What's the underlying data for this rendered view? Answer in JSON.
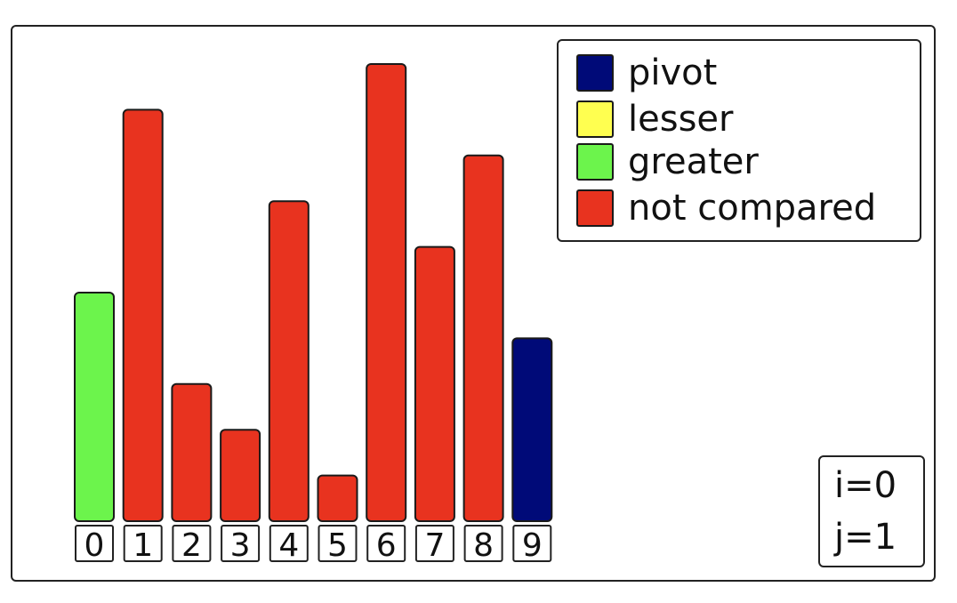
{
  "colors": {
    "pivot": "#000a78",
    "lesser": "#ffff50",
    "greater": "#6cf44c",
    "not_compared": "#e8331f"
  },
  "legend": {
    "items": [
      {
        "key": "pivot",
        "label": "pivot"
      },
      {
        "key": "lesser",
        "label": "lesser"
      },
      {
        "key": "greater",
        "label": "greater"
      },
      {
        "key": "not_compared",
        "label": "not compared"
      }
    ]
  },
  "array": {
    "values": [
      5,
      9,
      3,
      2,
      7,
      1,
      10,
      6,
      8,
      4
    ],
    "states": [
      "greater",
      "not_compared",
      "not_compared",
      "not_compared",
      "not_compared",
      "not_compared",
      "not_compared",
      "not_compared",
      "not_compared",
      "pivot"
    ],
    "indices": [
      "0",
      "1",
      "2",
      "3",
      "4",
      "5",
      "6",
      "7",
      "8",
      "9"
    ],
    "max_value": 10
  },
  "counters": {
    "i_text": "i=0",
    "j_text": "j=1"
  }
}
